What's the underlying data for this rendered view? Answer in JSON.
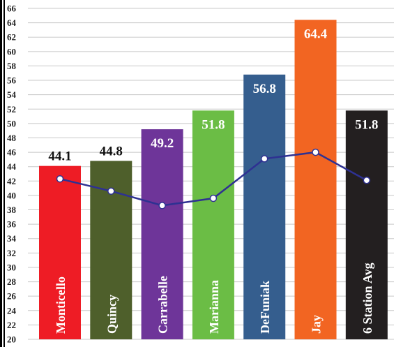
{
  "chart_data": {
    "type": "bar",
    "title": "",
    "xlabel": "",
    "ylabel": "",
    "ylim": [
      20,
      66
    ],
    "yticks": [
      20,
      22,
      24,
      26,
      28,
      30,
      32,
      34,
      36,
      38,
      40,
      42,
      44,
      46,
      48,
      50,
      52,
      54,
      56,
      58,
      60,
      62,
      64,
      66
    ],
    "grid": true,
    "categories": [
      "Monticello",
      "Quincy",
      "Carrabelle",
      "Marianna",
      "DeFuniak",
      "Jay",
      "6 Station Avg"
    ],
    "values": [
      44.1,
      44.8,
      49.2,
      51.8,
      56.8,
      64.4,
      51.8
    ],
    "value_labels": [
      "44.1",
      "44.8",
      "49.2",
      "51.8",
      "56.8",
      "64.4",
      "51.8"
    ],
    "bar_colors": [
      "#ee1c25",
      "#4e5f2b",
      "#6e3599",
      "#6bbd45",
      "#355e8e",
      "#f26522",
      "#231f20"
    ],
    "line_series": {
      "values": [
        42.3,
        40.6,
        38.6,
        39.6,
        45.1,
        46.0,
        42.1
      ],
      "color": "#2e3192"
    }
  }
}
